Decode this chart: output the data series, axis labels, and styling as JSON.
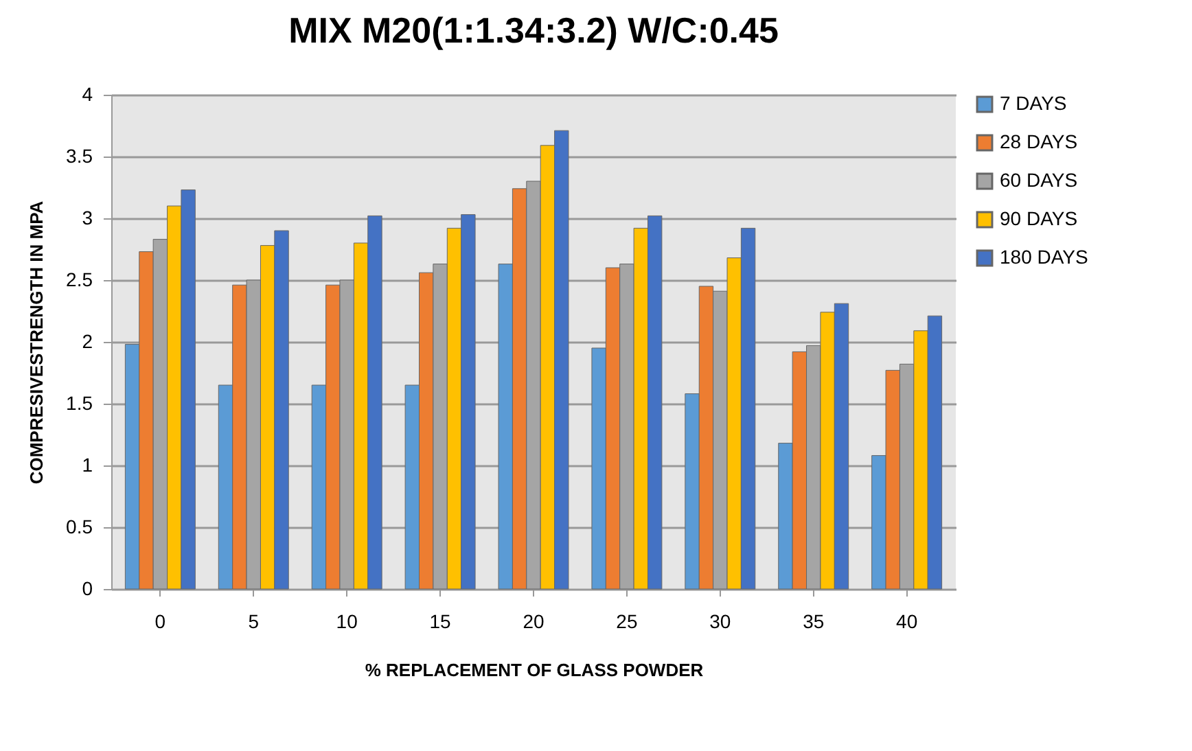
{
  "chart_data": {
    "type": "bar",
    "title": "MIX M20(1:1.34:3.2) W/C:0.45",
    "xlabel": "% REPLACEMENT OF GLASS POWDER",
    "ylabel": "COMPRESIVESTRENGTH IN MPA",
    "categories": [
      "0",
      "5",
      "10",
      "15",
      "20",
      "25",
      "30",
      "35",
      "40"
    ],
    "series": [
      {
        "name": "7 DAYS",
        "color": "#5b9bd5",
        "values": [
          1.98,
          1.65,
          1.65,
          1.65,
          2.63,
          1.95,
          1.58,
          1.18,
          1.08
        ]
      },
      {
        "name": "28 DAYS",
        "color": "#ed7d31",
        "values": [
          2.73,
          2.46,
          2.46,
          2.56,
          3.24,
          2.6,
          2.45,
          1.92,
          1.77
        ]
      },
      {
        "name": "60 DAYS",
        "color": "#a5a5a5",
        "values": [
          2.83,
          2.5,
          2.5,
          2.63,
          3.3,
          2.63,
          2.41,
          1.97,
          1.82
        ]
      },
      {
        "name": "90 DAYS",
        "color": "#ffc000",
        "values": [
          3.1,
          2.78,
          2.8,
          2.92,
          3.59,
          2.92,
          2.68,
          2.24,
          2.09
        ]
      },
      {
        "name": "180 DAYS",
        "color": "#4472c4",
        "values": [
          3.23,
          2.9,
          3.02,
          3.03,
          3.71,
          3.02,
          2.92,
          2.31,
          2.21
        ]
      }
    ],
    "ylim": [
      0,
      4
    ],
    "yticks": [
      0,
      0.5,
      1,
      1.5,
      2,
      2.5,
      3,
      3.5,
      4
    ],
    "grid": "y",
    "legend": "right"
  }
}
